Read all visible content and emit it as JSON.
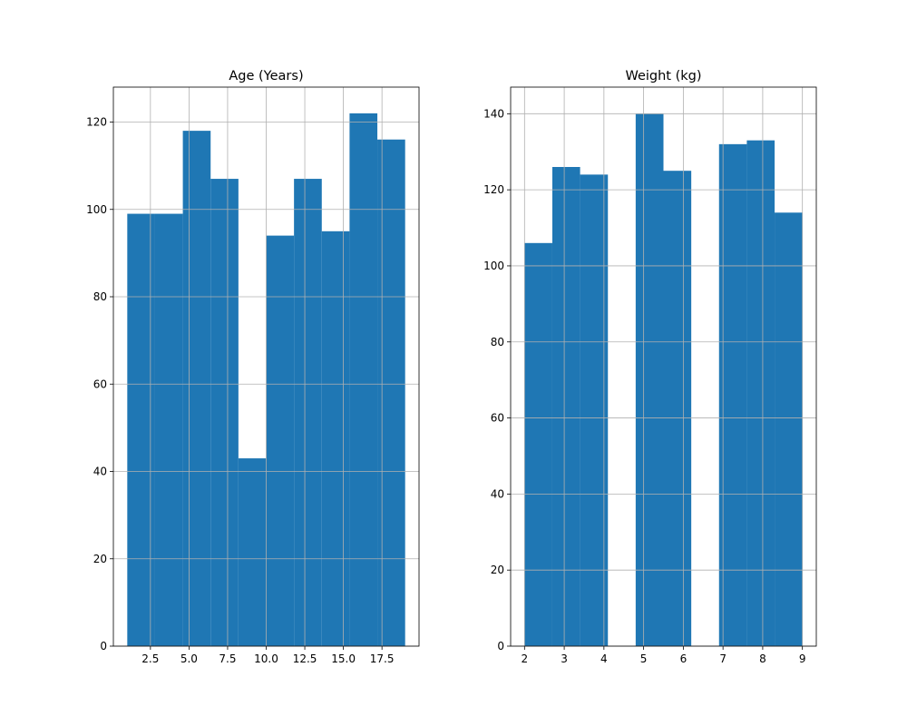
{
  "chart_data": [
    {
      "type": "bar",
      "title": "Age (Years)",
      "xlabel": "",
      "ylabel": "",
      "grid": true,
      "bin_edges": [
        1.0,
        2.8,
        4.6,
        6.4,
        8.2,
        10.0,
        11.8,
        13.6,
        15.4,
        17.2,
        19.0
      ],
      "values": [
        99,
        99,
        118,
        107,
        43,
        94,
        107,
        95,
        122,
        116
      ],
      "xlim": [
        0.1,
        19.9
      ],
      "ylim": [
        0,
        128
      ],
      "xticks": [
        2.5,
        5.0,
        7.5,
        10.0,
        12.5,
        15.0,
        17.5
      ],
      "xtick_labels": [
        "2.5",
        "5.0",
        "7.5",
        "10.0",
        "12.5",
        "15.0",
        "17.5"
      ],
      "yticks": [
        0,
        20,
        40,
        60,
        80,
        100,
        120
      ],
      "ytick_labels": [
        "0",
        "20",
        "40",
        "60",
        "80",
        "100",
        "120"
      ]
    },
    {
      "type": "bar",
      "title": "Weight (kg)",
      "xlabel": "",
      "ylabel": "",
      "grid": true,
      "bin_edges": [
        2.0,
        2.7,
        3.4,
        4.1,
        4.8,
        5.5,
        6.2,
        6.9,
        7.6,
        8.3,
        9.0
      ],
      "values": [
        106,
        126,
        124,
        0,
        140,
        125,
        0,
        132,
        133,
        114
      ],
      "xlim": [
        1.65,
        9.35
      ],
      "ylim": [
        0,
        147
      ],
      "xticks": [
        2,
        3,
        4,
        5,
        6,
        7,
        8,
        9
      ],
      "xtick_labels": [
        "2",
        "3",
        "4",
        "5",
        "6",
        "7",
        "8",
        "9"
      ],
      "yticks": [
        0,
        20,
        40,
        60,
        80,
        100,
        120,
        140
      ],
      "ytick_labels": [
        "0",
        "20",
        "40",
        "60",
        "80",
        "100",
        "120",
        "140"
      ]
    }
  ],
  "colors": {
    "bar": "#1f77b4",
    "grid": "#b0b0b0",
    "axis": "#000000"
  }
}
